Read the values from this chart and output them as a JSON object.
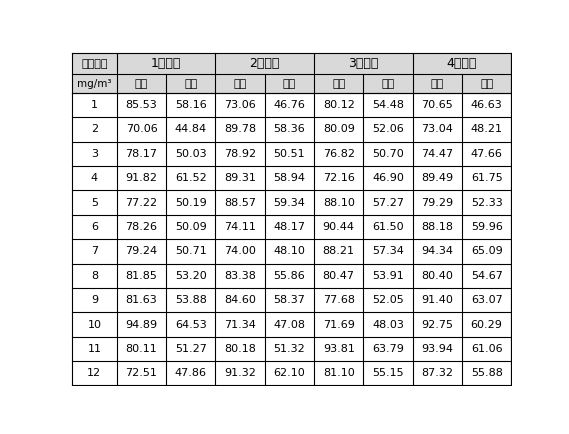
{
  "group_labels": [
    "1号锅炉",
    "2号锅炉",
    "3号锅炉",
    "4号锅炉"
  ],
  "col0_header_line1": "二氧化硫",
  "col0_header_line2": "mg/m³",
  "subheaders": [
    "空白",
    "试样",
    "空白",
    "试样",
    "空白",
    "试样",
    "空白",
    "试样"
  ],
  "rows": [
    [
      1,
      85.53,
      58.16,
      73.06,
      46.76,
      80.12,
      54.48,
      70.65,
      46.63
    ],
    [
      2,
      70.06,
      44.84,
      89.78,
      58.36,
      80.09,
      52.06,
      73.04,
      48.21
    ],
    [
      3,
      78.17,
      50.03,
      78.92,
      50.51,
      76.82,
      50.7,
      74.47,
      47.66
    ],
    [
      4,
      91.82,
      61.52,
      89.31,
      58.94,
      72.16,
      46.9,
      89.49,
      61.75
    ],
    [
      5,
      77.22,
      50.19,
      88.57,
      59.34,
      88.1,
      57.27,
      79.29,
      52.33
    ],
    [
      6,
      78.26,
      50.09,
      74.11,
      48.17,
      90.44,
      61.5,
      88.18,
      59.96
    ],
    [
      7,
      79.24,
      50.71,
      74.0,
      48.1,
      88.21,
      57.34,
      94.34,
      65.09
    ],
    [
      8,
      81.85,
      53.2,
      83.38,
      55.86,
      80.47,
      53.91,
      80.4,
      54.67
    ],
    [
      9,
      81.63,
      53.88,
      84.6,
      58.37,
      77.68,
      52.05,
      91.4,
      63.07
    ],
    [
      10,
      94.89,
      64.53,
      71.34,
      47.08,
      71.69,
      48.03,
      92.75,
      60.29
    ],
    [
      11,
      80.11,
      51.27,
      80.18,
      51.32,
      93.81,
      63.79,
      93.94,
      61.06
    ],
    [
      12,
      72.51,
      47.86,
      91.32,
      62.1,
      81.1,
      55.15,
      87.32,
      55.88
    ]
  ],
  "bg_color": "#ffffff",
  "header_bg": "#d9d9d9",
  "line_color": "#000000",
  "font_size": 8.0,
  "header_font_size": 9.0
}
